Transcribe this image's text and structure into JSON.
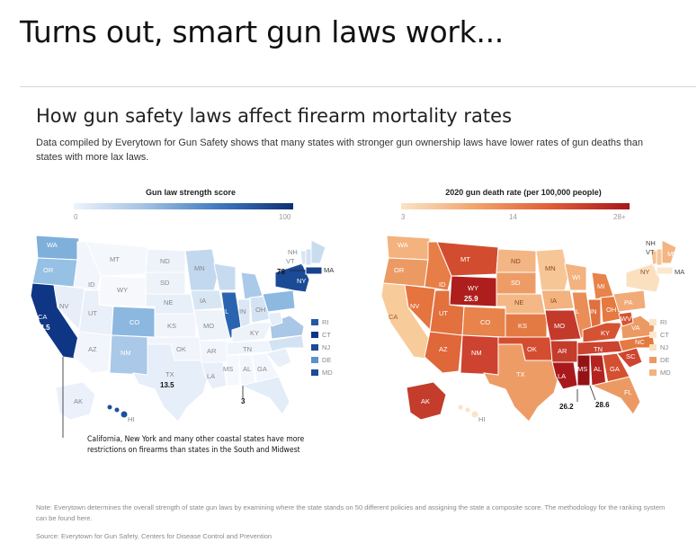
{
  "post": {
    "title": "Turns out, smart gun laws work..."
  },
  "graphic": {
    "headline": "How gun safety laws affect firearm mortality rates",
    "subhead": "Data compiled by Everytown for Gun Safety shows that many states with stronger gun ownership laws have lower rates of gun deaths than states with more lax laws.",
    "left_map": {
      "legend_title": "Gun law strength score",
      "scale_min": "0",
      "scale_max": "100",
      "colors": {
        "low": "#eef3fb",
        "high": "#0d2f73"
      },
      "callouts": {
        "ca": "84.5",
        "ma": "78",
        "tx": "13.5",
        "ms": "3"
      },
      "callout_text": "California, New York and many other coastal states have more restrictions on firearms than states in the South and Midwest"
    },
    "right_map": {
      "legend_title": "2020 gun death rate (per 100,000 people)",
      "scale_min": "3",
      "scale_mid": "14",
      "scale_max": "28+",
      "colors": {
        "low": "#fbe3c6",
        "high": "#a8161a"
      },
      "callouts": {
        "wy": "25.9",
        "la": "26.2",
        "ms": "28.6"
      }
    },
    "state_labels": {
      "wa": "WA",
      "or": "OR",
      "ca": "CA",
      "nv": "NV",
      "id": "ID",
      "mt": "MT",
      "wy": "WY",
      "ut": "UT",
      "az": "AZ",
      "co": "CO",
      "nm": "NM",
      "nd": "ND",
      "sd": "SD",
      "ne": "NE",
      "ks": "KS",
      "ok": "OK",
      "tx": "TX",
      "mn": "MN",
      "ia": "IA",
      "mo": "MO",
      "ar": "AR",
      "la": "LA",
      "wi": "WI",
      "il": "IL",
      "mi": "MI",
      "in": "IN",
      "oh": "OH",
      "ky": "KY",
      "tn": "TN",
      "ms": "MS",
      "al": "AL",
      "ga": "GA",
      "fl": "FL",
      "sc": "SC",
      "nc": "NC",
      "va": "VA",
      "wv": "WV",
      "pa": "PA",
      "ny": "NY",
      "vt": "VT",
      "nh": "NH",
      "me": "ME",
      "ma": "MA",
      "ak": "AK",
      "hi": "HI",
      "ri": "RI",
      "ct": "CT",
      "nj": "NJ",
      "de": "DE",
      "md": "MD"
    },
    "note": "Note: Everytown determines the overall strength of state gun laws by examining where the state stands on 50 different policies and assigning the state a composite score. The methodology for the ranking system can be found here.",
    "source": "Source: Everytown for Gun Safety, Centers for Disease Control and Prevention"
  }
}
